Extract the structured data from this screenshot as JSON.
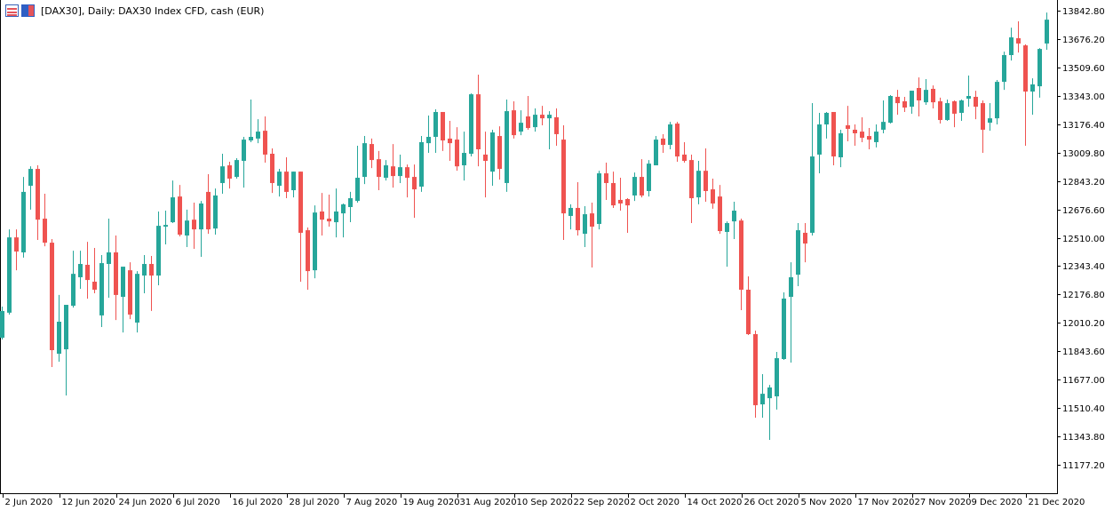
{
  "header": {
    "title": "[DAX30], Daily:  DAX30 Index CFD, cash (EUR)",
    "icons": [
      "chart-window-icon",
      "symbol-properties-icon"
    ]
  },
  "colors": {
    "bull": "#26a69a",
    "bear": "#ef5350",
    "axis": "#000000",
    "background": "#ffffff"
  },
  "chart_data": {
    "type": "candlestick",
    "symbol": "DAX30",
    "timeframe": "Daily",
    "ylim": [
      11070,
      13905
    ],
    "grid": false,
    "y_ticks": [
      "13842.80",
      "13676.20",
      "13509.60",
      "13343.00",
      "13176.40",
      "13009.80",
      "12843.20",
      "12676.60",
      "12510.00",
      "12343.40",
      "12176.80",
      "12010.20",
      "11843.60",
      "11677.00",
      "11510.40",
      "11343.80",
      "11177.20"
    ],
    "x_ticks": [
      {
        "index": 0,
        "label": "2 Jun 2020"
      },
      {
        "index": 8,
        "label": "12 Jun 2020"
      },
      {
        "index": 16,
        "label": "24 Jun 2020"
      },
      {
        "index": 24,
        "label": "6 Jul 2020"
      },
      {
        "index": 32,
        "label": "16 Jul 2020"
      },
      {
        "index": 40,
        "label": "28 Jul 2020"
      },
      {
        "index": 48,
        "label": "7 Aug 2020"
      },
      {
        "index": 56,
        "label": "19 Aug 2020"
      },
      {
        "index": 64,
        "label": "31 Aug 2020"
      },
      {
        "index": 72,
        "label": "10 Sep 2020"
      },
      {
        "index": 80,
        "label": "22 Sep 2020"
      },
      {
        "index": 88,
        "label": "2 Oct 2020"
      },
      {
        "index": 96,
        "label": "14 Oct 2020"
      },
      {
        "index": 104,
        "label": "26 Oct 2020"
      },
      {
        "index": 112,
        "label": "5 Nov 2020"
      },
      {
        "index": 120,
        "label": "17 Nov 2020"
      },
      {
        "index": 128,
        "label": "27 Nov 2020"
      },
      {
        "index": 136,
        "label": "9 Dec 2020"
      },
      {
        "index": 144,
        "label": "21 Dec 2020"
      }
    ],
    "ohlc_fields": [
      "open",
      "high",
      "low",
      "close"
    ],
    "candles": [
      [
        11923,
        12106,
        11913,
        12080
      ],
      [
        12070,
        12559,
        12059,
        12512
      ],
      [
        12512,
        12559,
        12319,
        12429
      ],
      [
        12424,
        12867,
        12393,
        12779
      ],
      [
        12815,
        12929,
        12675,
        12914
      ],
      [
        12914,
        12935,
        12497,
        12616
      ],
      [
        12622,
        12768,
        12460,
        12481
      ],
      [
        12481,
        12502,
        11751,
        11850
      ],
      [
        11829,
        12174,
        11782,
        12017
      ],
      [
        11855,
        12116,
        11584,
        12116
      ],
      [
        12111,
        12434,
        12100,
        12298
      ],
      [
        12278,
        12434,
        12210,
        12356
      ],
      [
        12351,
        12486,
        12152,
        12262
      ],
      [
        12252,
        12450,
        12184,
        12205
      ],
      [
        12054,
        12408,
        11986,
        12361
      ],
      [
        12356,
        12622,
        12158,
        12424
      ],
      [
        12424,
        12523,
        12027,
        12174
      ],
      [
        12163,
        12340,
        11954,
        12340
      ],
      [
        12319,
        12366,
        12032,
        12059
      ],
      [
        12012,
        12314,
        11954,
        12298
      ],
      [
        12288,
        12408,
        12184,
        12356
      ],
      [
        12356,
        12403,
        12080,
        12288
      ],
      [
        12288,
        12664,
        12231,
        12580
      ],
      [
        12575,
        12669,
        12471,
        12585
      ],
      [
        12601,
        12846,
        12596,
        12747
      ],
      [
        12752,
        12820,
        12518,
        12528
      ],
      [
        12523,
        12675,
        12455,
        12611
      ],
      [
        12616,
        12716,
        12445,
        12559
      ],
      [
        12559,
        12726,
        12398,
        12711
      ],
      [
        12779,
        12883,
        12533,
        12559
      ],
      [
        12564,
        12799,
        12528,
        12758
      ],
      [
        12831,
        13003,
        12768,
        12929
      ],
      [
        12935,
        12956,
        12799,
        12857
      ],
      [
        12867,
        12977,
        12857,
        12966
      ],
      [
        12961,
        13102,
        12804,
        13086
      ],
      [
        13081,
        13321,
        13071,
        13102
      ],
      [
        13092,
        13206,
        13065,
        13133
      ],
      [
        13138,
        13222,
        12951,
        12998
      ],
      [
        13003,
        13034,
        12773,
        12831
      ],
      [
        12815,
        12914,
        12752,
        12898
      ],
      [
        12898,
        12982,
        12742,
        12779
      ],
      [
        12789,
        12898,
        12747,
        12898
      ],
      [
        12898,
        12898,
        12252,
        12539
      ],
      [
        12554,
        12570,
        12205,
        12314
      ],
      [
        12319,
        12700,
        12272,
        12658
      ],
      [
        12664,
        12773,
        12523,
        12616
      ],
      [
        12622,
        12763,
        12575,
        12606
      ],
      [
        12601,
        12799,
        12512,
        12664
      ],
      [
        12653,
        12711,
        12512,
        12706
      ],
      [
        12690,
        12779,
        12601,
        12742
      ],
      [
        12726,
        13050,
        12716,
        12862
      ],
      [
        12867,
        13107,
        12825,
        13065
      ],
      [
        13060,
        13092,
        12919,
        12966
      ],
      [
        12971,
        13019,
        12789,
        12867
      ],
      [
        12862,
        12966,
        12846,
        12935
      ],
      [
        12929,
        13060,
        12804,
        12872
      ],
      [
        12872,
        12998,
        12831,
        12924
      ],
      [
        12924,
        12940,
        12747,
        12862
      ],
      [
        12867,
        12940,
        12627,
        12794
      ],
      [
        12810,
        13107,
        12779,
        13071
      ],
      [
        13065,
        13227,
        13008,
        13102
      ],
      [
        13102,
        13264,
        13008,
        13248
      ],
      [
        13248,
        13248,
        13019,
        13081
      ],
      [
        13092,
        13196,
        12961,
        13065
      ],
      [
        13086,
        13159,
        12903,
        12929
      ],
      [
        12935,
        13133,
        12846,
        13008
      ],
      [
        13003,
        13357,
        12987,
        13352
      ],
      [
        13352,
        13467,
        12929,
        13029
      ],
      [
        12998,
        13133,
        12747,
        12961
      ],
      [
        12898,
        13144,
        12815,
        13128
      ],
      [
        13107,
        13164,
        12851,
        12914
      ],
      [
        12831,
        13321,
        12779,
        13253
      ],
      [
        13258,
        13311,
        13092,
        13112
      ],
      [
        13133,
        13258,
        13112,
        13185
      ],
      [
        13222,
        13342,
        13144,
        13154
      ],
      [
        13159,
        13269,
        13133,
        13232
      ],
      [
        13232,
        13284,
        13170,
        13211
      ],
      [
        13211,
        13253,
        13029,
        13232
      ],
      [
        13217,
        13269,
        13050,
        13118
      ],
      [
        13086,
        13170,
        12497,
        12653
      ],
      [
        12638,
        12706,
        12559,
        12685
      ],
      [
        12685,
        12836,
        12523,
        12554
      ],
      [
        12533,
        12695,
        12455,
        12648
      ],
      [
        12653,
        12716,
        12335,
        12575
      ],
      [
        12591,
        12903,
        12559,
        12888
      ],
      [
        12888,
        12951,
        12732,
        12831
      ],
      [
        12831,
        12898,
        12685,
        12700
      ],
      [
        12732,
        12862,
        12669,
        12711
      ],
      [
        12737,
        12742,
        12539,
        12700
      ],
      [
        12758,
        12893,
        12726,
        12867
      ],
      [
        12867,
        12971,
        12747,
        12758
      ],
      [
        12784,
        12966,
        12752,
        12945
      ],
      [
        12935,
        13107,
        12935,
        13086
      ],
      [
        13092,
        13118,
        13008,
        13055
      ],
      [
        13055,
        13190,
        13029,
        13175
      ],
      [
        13180,
        13190,
        12956,
        12987
      ],
      [
        12998,
        13071,
        12951,
        12961
      ],
      [
        12966,
        12998,
        12596,
        12742
      ],
      [
        12747,
        12961,
        12706,
        12903
      ],
      [
        12903,
        13034,
        12721,
        12784
      ],
      [
        12794,
        12857,
        12680,
        12711
      ],
      [
        12752,
        12820,
        12533,
        12549
      ],
      [
        12544,
        12606,
        12340,
        12596
      ],
      [
        12606,
        12721,
        12502,
        12669
      ],
      [
        12611,
        12622,
        12085,
        12205
      ],
      [
        12205,
        12283,
        11939,
        11944
      ],
      [
        11944,
        11965,
        11454,
        11527
      ],
      [
        11532,
        11709,
        11454,
        11594
      ],
      [
        11568,
        11646,
        11323,
        11631
      ],
      [
        11579,
        11840,
        11501,
        11803
      ],
      [
        11798,
        12189,
        11793,
        12153
      ],
      [
        12163,
        12366,
        11777,
        12278
      ],
      [
        12293,
        12596,
        12226,
        12554
      ],
      [
        12539,
        12596,
        12366,
        12476
      ],
      [
        12539,
        13300,
        12523,
        12987
      ],
      [
        12998,
        13243,
        12888,
        13175
      ],
      [
        13175,
        13248,
        13092,
        13243
      ],
      [
        13248,
        13248,
        12935,
        12987
      ],
      [
        12982,
        13144,
        12924,
        13123
      ],
      [
        13170,
        13284,
        13076,
        13149
      ],
      [
        13144,
        13175,
        13050,
        13123
      ],
      [
        13133,
        13217,
        13071,
        13097
      ],
      [
        13107,
        13154,
        13029,
        13086
      ],
      [
        13071,
        13175,
        13040,
        13133
      ],
      [
        13144,
        13316,
        13123,
        13190
      ],
      [
        13185,
        13347,
        13180,
        13342
      ],
      [
        13337,
        13378,
        13232,
        13300
      ],
      [
        13311,
        13337,
        13248,
        13274
      ],
      [
        13279,
        13373,
        13238,
        13373
      ],
      [
        13389,
        13451,
        13222,
        13316
      ],
      [
        13305,
        13441,
        13290,
        13378
      ],
      [
        13384,
        13404,
        13269,
        13305
      ],
      [
        13311,
        13332,
        13180,
        13201
      ],
      [
        13201,
        13321,
        13196,
        13300
      ],
      [
        13311,
        13316,
        13159,
        13238
      ],
      [
        13243,
        13321,
        13196,
        13316
      ],
      [
        13326,
        13462,
        13279,
        13342
      ],
      [
        13337,
        13373,
        13206,
        13279
      ],
      [
        13300,
        13316,
        13008,
        13144
      ],
      [
        13185,
        13300,
        13138,
        13211
      ],
      [
        13211,
        13436,
        13175,
        13425
      ],
      [
        13425,
        13602,
        13378,
        13582
      ],
      [
        13582,
        13743,
        13550,
        13686
      ],
      [
        13681,
        13780,
        13597,
        13650
      ],
      [
        13639,
        13645,
        13050,
        13368
      ],
      [
        13368,
        13446,
        13232,
        13410
      ],
      [
        13399,
        13623,
        13332,
        13618
      ],
      [
        13650,
        13832,
        13613,
        13790
      ]
    ]
  }
}
